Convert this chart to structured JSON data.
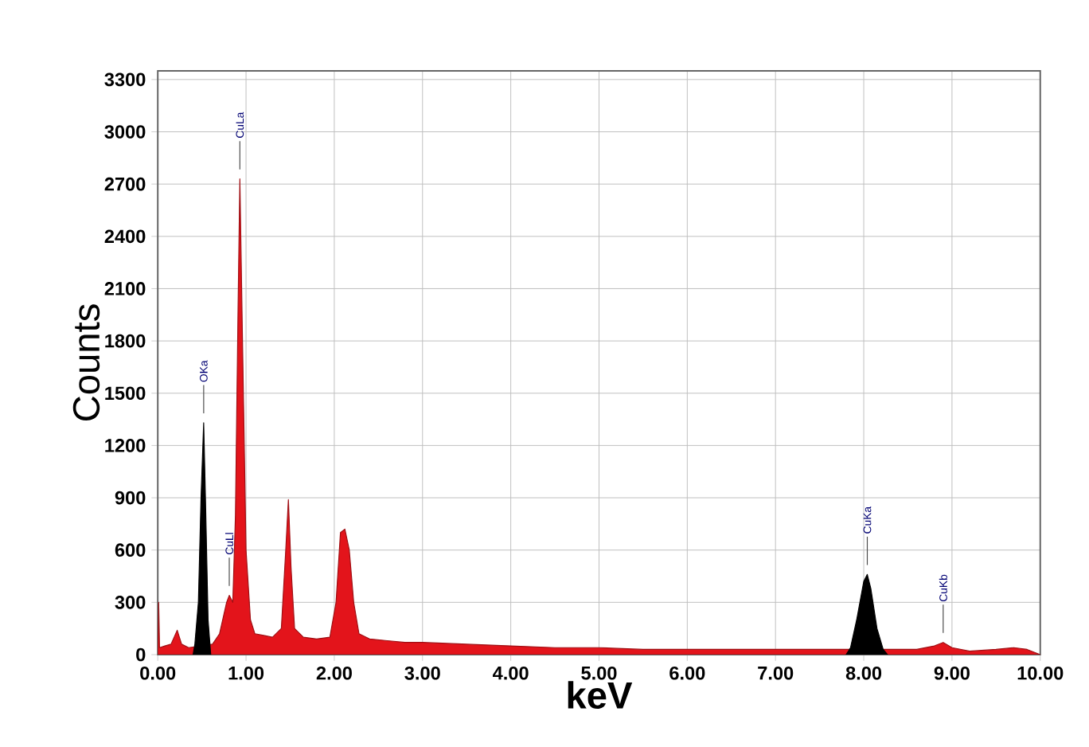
{
  "chart_data": {
    "type": "area",
    "xlabel": "keV",
    "ylabel": "Counts",
    "xlim": [
      0,
      10
    ],
    "ylim": [
      0,
      3350
    ],
    "xticks": [
      {
        "value": 0,
        "label": "0.00"
      },
      {
        "value": 1,
        "label": "1.00"
      },
      {
        "value": 2,
        "label": "2.00"
      },
      {
        "value": 3,
        "label": "3.00"
      },
      {
        "value": 4,
        "label": "4.00"
      },
      {
        "value": 5,
        "label": "5.00"
      },
      {
        "value": 6,
        "label": "6.00"
      },
      {
        "value": 7,
        "label": "7.00"
      },
      {
        "value": 8,
        "label": "8.00"
      },
      {
        "value": 9,
        "label": "9.00"
      },
      {
        "value": 10,
        "label": "10.00"
      }
    ],
    "yticks": [
      0,
      300,
      600,
      900,
      1200,
      1500,
      1800,
      2100,
      2400,
      2700,
      3000,
      3300
    ],
    "grid": true,
    "marker": "none",
    "series": [
      {
        "color": "#e3141b",
        "x": [
          0,
          0.01,
          0.02,
          0.08,
          0.15,
          0.22,
          0.27,
          0.35,
          0.62,
          0.7,
          0.78,
          0.81,
          0.85,
          0.88,
          0.91,
          0.93,
          0.96,
          1.0,
          1.05,
          1.1,
          1.2,
          1.3,
          1.4,
          1.45,
          1.48,
          1.51,
          1.55,
          1.65,
          1.8,
          1.95,
          2.02,
          2.07,
          2.12,
          2.17,
          2.22,
          2.28,
          2.4,
          2.6,
          2.8,
          3.0,
          3.5,
          4.0,
          4.5,
          5.0,
          5.5,
          6.0,
          6.5,
          7.0,
          7.5,
          7.75,
          8.35,
          8.6,
          8.8,
          8.9,
          9.0,
          9.2,
          9.5,
          9.7,
          9.85,
          10
        ],
        "values": [
          0,
          300,
          40,
          50,
          60,
          140,
          60,
          40,
          60,
          120,
          300,
          340,
          300,
          800,
          2000,
          2730,
          1800,
          600,
          200,
          120,
          110,
          100,
          150,
          600,
          890,
          500,
          150,
          100,
          90,
          100,
          300,
          700,
          720,
          600,
          300,
          120,
          90,
          80,
          70,
          70,
          60,
          50,
          40,
          40,
          30,
          30,
          30,
          30,
          30,
          30,
          30,
          30,
          50,
          70,
          40,
          20,
          30,
          40,
          30,
          0
        ]
      },
      {
        "color": "#000000",
        "x": [
          0.4,
          0.42,
          0.46,
          0.49,
          0.52,
          0.54,
          0.57,
          0.6
        ],
        "values": [
          0,
          60,
          300,
          900,
          1330,
          900,
          200,
          0
        ]
      },
      {
        "color": "#000000",
        "x": [
          7.8,
          7.85,
          7.92,
          8.0,
          8.04,
          8.08,
          8.15,
          8.22,
          8.27
        ],
        "values": [
          0,
          40,
          200,
          420,
          460,
          380,
          150,
          30,
          0
        ]
      }
    ],
    "annotations": [
      {
        "text": "OKa",
        "x": 0.52,
        "y": 1330
      },
      {
        "text": "CuLl",
        "x": 0.81,
        "y": 340
      },
      {
        "text": "CuLa",
        "x": 0.93,
        "y": 2730
      },
      {
        "text": "CuKa",
        "x": 8.04,
        "y": 460
      },
      {
        "text": "CuKb",
        "x": 8.9,
        "y": 70
      }
    ]
  }
}
